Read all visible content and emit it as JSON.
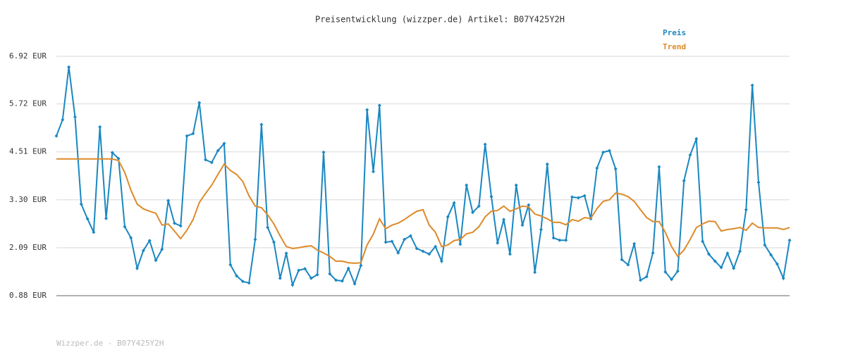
{
  "chart_data": {
    "type": "line",
    "title": "Preisentwicklung (wizzper.de) Artikel: B07Y425Y2H",
    "footer": "Wizzper.de - B07Y425Y2H",
    "ylim": [
      0.88,
      6.92
    ],
    "yticks": [
      {
        "value": 0.88,
        "label": "0.88 EUR"
      },
      {
        "value": 2.09,
        "label": "2.09 EUR"
      },
      {
        "value": 3.3,
        "label": "3.30 EUR"
      },
      {
        "value": 4.51,
        "label": "4.51 EUR"
      },
      {
        "value": 5.72,
        "label": "5.72 EUR"
      },
      {
        "value": 6.92,
        "label": "6.92 EUR"
      }
    ],
    "grid": true,
    "legend": "top-right",
    "series": [
      {
        "name": "Preis",
        "color": "#1a87c1",
        "markers": true,
        "values": [
          4.91,
          5.32,
          6.65,
          5.39,
          3.19,
          2.82,
          2.48,
          5.14,
          2.83,
          4.49,
          4.34,
          2.62,
          2.34,
          1.57,
          2.02,
          2.27,
          1.77,
          2.05,
          3.28,
          2.71,
          2.64,
          4.91,
          4.97,
          5.75,
          4.31,
          4.24,
          4.54,
          4.72,
          1.66,
          1.38,
          1.24,
          1.2,
          2.3,
          5.2,
          2.6,
          2.23,
          1.32,
          1.95,
          1.15,
          1.52,
          1.56,
          1.32,
          1.41,
          4.5,
          1.43,
          1.27,
          1.25,
          1.57,
          1.18,
          1.64,
          5.57,
          4.01,
          5.68,
          2.23,
          2.25,
          1.96,
          2.3,
          2.39,
          2.07,
          2.0,
          1.93,
          2.12,
          1.75,
          2.87,
          3.22,
          2.18,
          3.67,
          2.98,
          3.14,
          4.7,
          3.38,
          2.21,
          2.8,
          1.93,
          3.67,
          2.66,
          3.17,
          1.47,
          2.55,
          4.2,
          2.34,
          2.28,
          2.28,
          3.37,
          3.35,
          3.4,
          2.82,
          4.1,
          4.5,
          4.54,
          4.08,
          1.79,
          1.66,
          2.19,
          1.27,
          1.36,
          1.96,
          4.13,
          1.48,
          1.29,
          1.5,
          3.78,
          4.43,
          4.84,
          2.25,
          1.93,
          1.75,
          1.59,
          1.95,
          1.57,
          2.0,
          3.05,
          6.19,
          3.74,
          2.16,
          1.91,
          1.68,
          1.32,
          2.28
        ]
      },
      {
        "name": "Trend",
        "color": "#dd8a2a",
        "markers": false,
        "values": [
          4.33,
          4.33,
          4.33,
          4.33,
          4.33,
          4.33,
          4.33,
          4.33,
          4.33,
          4.33,
          4.29,
          3.99,
          3.54,
          3.19,
          3.07,
          3.01,
          2.96,
          2.66,
          2.69,
          2.51,
          2.32,
          2.53,
          2.8,
          3.23,
          3.46,
          3.67,
          3.94,
          4.2,
          4.04,
          3.94,
          3.76,
          3.4,
          3.14,
          3.1,
          2.92,
          2.69,
          2.39,
          2.12,
          2.07,
          2.09,
          2.12,
          2.14,
          2.03,
          1.96,
          1.87,
          1.75,
          1.75,
          1.71,
          1.7,
          1.71,
          2.16,
          2.43,
          2.82,
          2.57,
          2.66,
          2.71,
          2.8,
          2.91,
          3.01,
          3.05,
          2.66,
          2.48,
          2.12,
          2.16,
          2.27,
          2.3,
          2.44,
          2.48,
          2.62,
          2.87,
          3.01,
          3.03,
          3.14,
          3.01,
          3.07,
          3.14,
          3.12,
          2.94,
          2.89,
          2.82,
          2.73,
          2.73,
          2.67,
          2.8,
          2.76,
          2.85,
          2.83,
          3.08,
          3.26,
          3.3,
          3.47,
          3.44,
          3.38,
          3.26,
          3.05,
          2.85,
          2.75,
          2.75,
          2.48,
          2.12,
          1.87,
          2.03,
          2.3,
          2.6,
          2.69,
          2.76,
          2.75,
          2.51,
          2.55,
          2.57,
          2.6,
          2.53,
          2.71,
          2.6,
          2.59,
          2.59,
          2.59,
          2.55,
          2.6
        ]
      }
    ]
  }
}
